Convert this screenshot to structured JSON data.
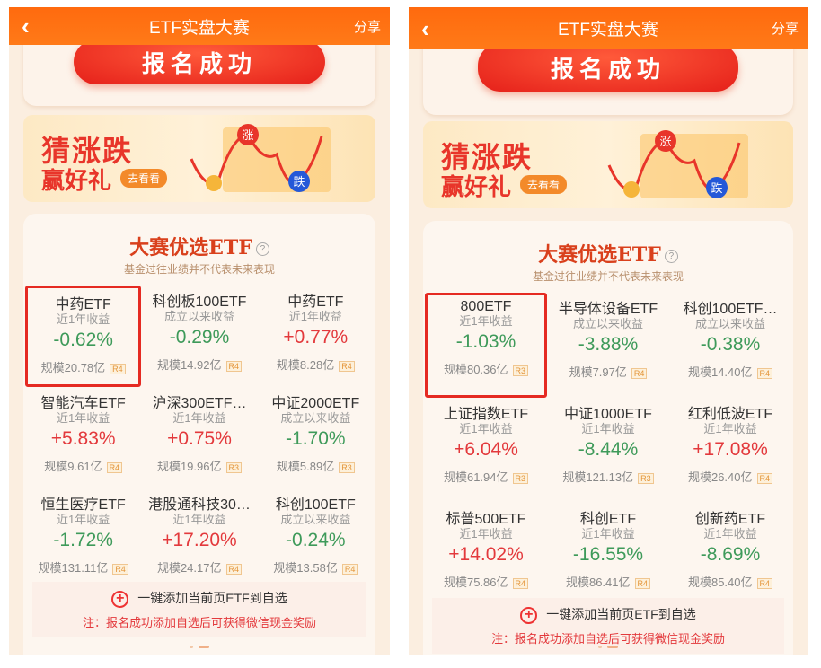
{
  "colors": {
    "header": "#ff6a0e",
    "up": "#e3393c",
    "down": "#3e9a5a",
    "highlight": "#e52a22"
  },
  "panels": [
    {
      "header": {
        "back_icon": "chevron-left",
        "title": "ETF实盘大赛",
        "share": "分享"
      },
      "signup": "报名成功",
      "banner": {
        "line1": "猜涨跌",
        "line2": "赢好礼",
        "cta": "去看看",
        "rise": "涨",
        "fall": "跌"
      },
      "section": {
        "title": "大赛优选ETF",
        "help_icon": "question-circle",
        "subtitle": "基金过往业绩并不代表未来表现"
      },
      "items": [
        {
          "name": "中药ETF",
          "label": "近1年收益",
          "value": "-0.62%",
          "dir": "dn",
          "scale": "规模20.78亿",
          "risk": "R4",
          "selected": true
        },
        {
          "name": "科创板100ETF",
          "label": "成立以来收益",
          "value": "-0.29%",
          "dir": "dn",
          "scale": "规模14.92亿",
          "risk": "R4"
        },
        {
          "name": "中药ETF",
          "label": "近1年收益",
          "value": "+0.77%",
          "dir": "up",
          "scale": "规模8.28亿",
          "risk": "R4"
        },
        {
          "name": "智能汽车ETF",
          "label": "近1年收益",
          "value": "+5.83%",
          "dir": "up",
          "scale": "规模9.61亿",
          "risk": "R4"
        },
        {
          "name": "沪深300ETF…",
          "label": "近1年收益",
          "value": "+0.75%",
          "dir": "up",
          "scale": "规模19.96亿",
          "risk": "R3"
        },
        {
          "name": "中证2000ETF",
          "label": "成立以来收益",
          "value": "-1.70%",
          "dir": "dn",
          "scale": "规模5.89亿",
          "risk": "R3"
        },
        {
          "name": "恒生医疗ETF",
          "label": "近1年收益",
          "value": "-1.72%",
          "dir": "dn",
          "scale": "规模131.11亿",
          "risk": "R4"
        },
        {
          "name": "港股通科技30…",
          "label": "近1年收益",
          "value": "+17.20%",
          "dir": "up",
          "scale": "规模24.17亿",
          "risk": "R4"
        },
        {
          "name": "科创100ETF",
          "label": "成立以来收益",
          "value": "-0.24%",
          "dir": "dn",
          "scale": "规模13.58亿",
          "risk": "R4"
        }
      ],
      "footer": {
        "add": "一键添加当前页ETF到自选",
        "note": "注：报名成功添加自选后可获得微信现金奖励"
      }
    },
    {
      "header": {
        "back_icon": "chevron-left",
        "title": "ETF实盘大赛",
        "share": "分享"
      },
      "signup": "报名成功",
      "banner": {
        "line1": "猜涨跌",
        "line2": "赢好礼",
        "cta": "去看看",
        "rise": "涨",
        "fall": "跌"
      },
      "section": {
        "title": "大赛优选ETF",
        "help_icon": "question-circle",
        "subtitle": "基金过往业绩并不代表未来表现"
      },
      "items": [
        {
          "name": "800ETF",
          "label": "近1年收益",
          "value": "-1.03%",
          "dir": "dn",
          "scale": "规模80.36亿",
          "risk": "R3",
          "selected": true
        },
        {
          "name": "半导体设备ETF",
          "label": "成立以来收益",
          "value": "-3.88%",
          "dir": "dn",
          "scale": "规模7.97亿",
          "risk": "R4"
        },
        {
          "name": "科创100ETF…",
          "label": "成立以来收益",
          "value": "-0.38%",
          "dir": "dn",
          "scale": "规模14.40亿",
          "risk": "R4"
        },
        {
          "name": "上证指数ETF",
          "label": "近1年收益",
          "value": "+6.04%",
          "dir": "up",
          "scale": "规模61.94亿",
          "risk": "R3"
        },
        {
          "name": "中证1000ETF",
          "label": "近1年收益",
          "value": "-8.44%",
          "dir": "dn",
          "scale": "规模121.13亿",
          "risk": "R3"
        },
        {
          "name": "红利低波ETF",
          "label": "近1年收益",
          "value": "+17.08%",
          "dir": "up",
          "scale": "规模26.40亿",
          "risk": "R4"
        },
        {
          "name": "标普500ETF",
          "label": "近1年收益",
          "value": "+14.02%",
          "dir": "up",
          "scale": "规模75.86亿",
          "risk": "R4"
        },
        {
          "name": "科创ETF",
          "label": "近1年收益",
          "value": "-16.55%",
          "dir": "dn",
          "scale": "规模86.41亿",
          "risk": "R4"
        },
        {
          "name": "创新药ETF",
          "label": "近1年收益",
          "value": "-8.69%",
          "dir": "dn",
          "scale": "规模85.40亿",
          "risk": "R4"
        }
      ],
      "footer": {
        "add": "一键添加当前页ETF到自选",
        "note": "注：报名成功添加自选后可获得微信现金奖励"
      }
    }
  ]
}
